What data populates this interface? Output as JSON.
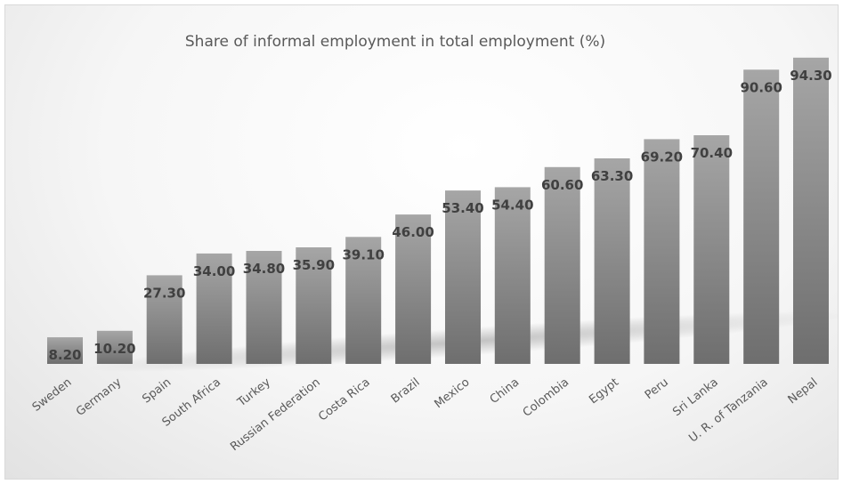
{
  "chart_data": {
    "type": "bar",
    "title": "Share of informal employment  in total employment (%)",
    "categories": [
      "Sweden",
      "Germany",
      "Spain",
      "South Africa",
      "Turkey",
      "Russian Federation",
      "Costa Rica",
      "Brazil",
      "Mexico",
      "China",
      "Colombia",
      "Egypt",
      "Peru",
      "Sri Lanka",
      "U. R. of Tanzania",
      "Nepal"
    ],
    "values": [
      8.2,
      10.2,
      27.3,
      34.0,
      34.8,
      35.9,
      39.1,
      46.0,
      53.4,
      54.4,
      60.6,
      63.3,
      69.2,
      70.4,
      90.6,
      94.3
    ],
    "data_labels": [
      "8.20",
      "10.20",
      "27.30",
      "34.00",
      "34.80",
      "35.90",
      "39.10",
      "46.00",
      "53.40",
      "54.40",
      "60.60",
      "63.30",
      "69.20",
      "70.40",
      "90.60",
      "94.30"
    ],
    "xlabel": "",
    "ylabel": "",
    "ylim": [
      0,
      100
    ],
    "grid": false,
    "legend": "none",
    "colors": {
      "bar_top": "#a6a6a6",
      "bar_bottom": "#6e6e6e",
      "label": "#404040"
    }
  }
}
